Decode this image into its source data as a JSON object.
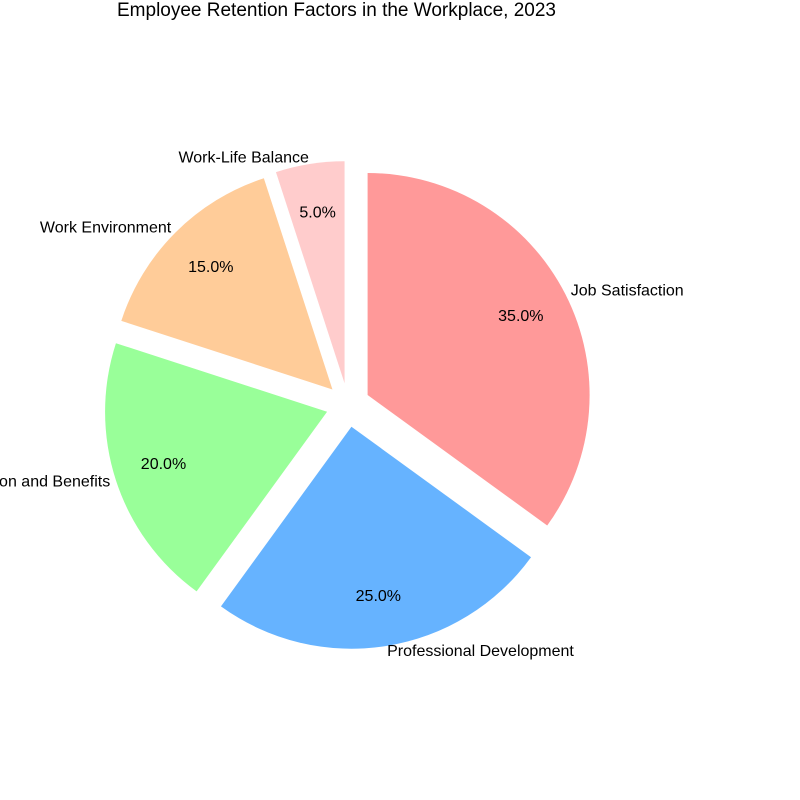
{
  "chart_data": {
    "type": "pie",
    "title": "Employee Retention Factors in the Workplace, 2023",
    "slices": [
      {
        "label": "Job Satisfaction",
        "value": 35.0,
        "pct_label": "35.0%",
        "color": "#ff9999"
      },
      {
        "label": "Professional Development",
        "value": 25.0,
        "pct_label": "25.0%",
        "color": "#66b3ff"
      },
      {
        "label": "Compensation and Benefits",
        "value": 20.0,
        "pct_label": "20.0%",
        "color": "#99ff99"
      },
      {
        "label": "Work Environment",
        "value": 15.0,
        "pct_label": "15.0%",
        "color": "#ffcc99"
      },
      {
        "label": "Work-Life Balance",
        "value": 5.0,
        "pct_label": "5.0%",
        "color": "#ffcccc"
      }
    ],
    "start_angle_deg": 90,
    "direction": "clockwise",
    "exploded": true,
    "legend": "none"
  }
}
